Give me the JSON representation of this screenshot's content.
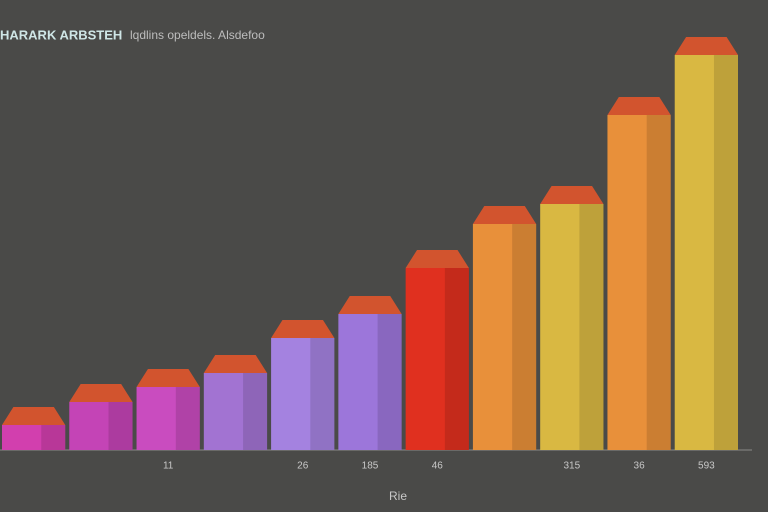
{
  "chart_data": {
    "type": "bar3d",
    "title": "HARARK ARBSTEH",
    "subtitle": "lqdlins opeldels. Alsdefoo",
    "x_label": "Rie",
    "categories": [
      null,
      null,
      "11",
      null,
      "26",
      "185",
      "46",
      null,
      "315",
      "36",
      "593"
    ],
    "values": [
      25,
      48,
      63,
      77,
      112,
      136,
      182,
      226,
      246,
      335,
      395
    ],
    "colors": [
      "#d23fae",
      "#c444b6",
      "#c94cbf",
      "#a273d2",
      "#a482e0",
      "#9c76da",
      "#e0301f",
      "#e8903a",
      "#d9b842",
      "#e8903a",
      "#d9b842"
    ],
    "cap_color": "#d2542e",
    "ylim": [
      0,
      450
    ]
  }
}
